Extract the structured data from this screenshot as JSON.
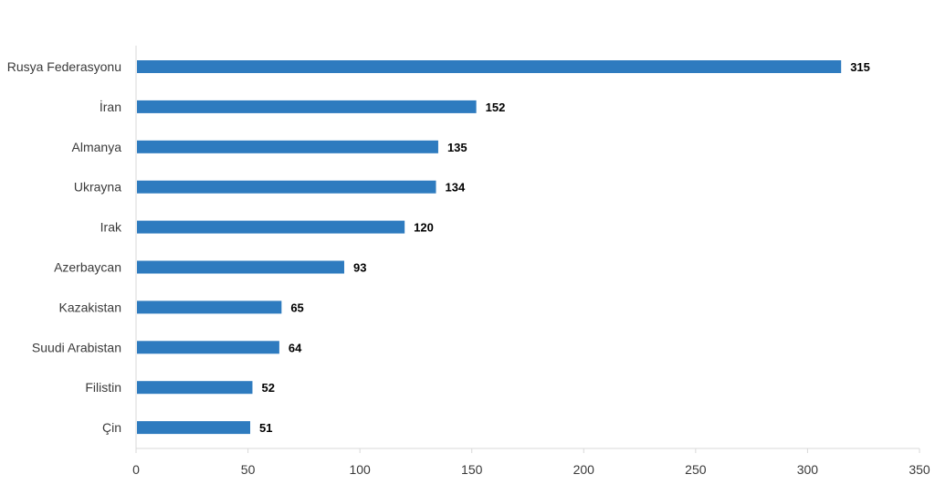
{
  "chart_data": {
    "type": "bar",
    "orientation": "horizontal",
    "title": "",
    "xlabel": "",
    "ylabel": "",
    "categories": [
      "Rusya Federasyonu",
      "İran",
      "Almanya",
      "Ukrayna",
      "Irak",
      "Azerbaycan",
      "Kazakistan",
      "Suudi Arabistan",
      "Filistin",
      "Çin"
    ],
    "values": [
      315,
      152,
      135,
      134,
      120,
      93,
      65,
      64,
      52,
      51
    ],
    "xlim": [
      0,
      350
    ],
    "xticks": [
      0,
      50,
      100,
      150,
      200,
      250,
      300,
      350
    ],
    "grid": false,
    "legend": "none",
    "data_labels": true,
    "bar_color": "#2e7bbf"
  }
}
